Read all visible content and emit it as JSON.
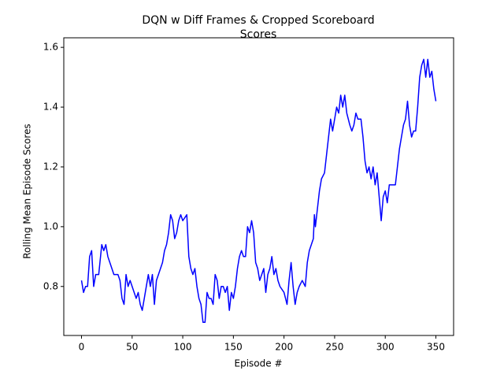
{
  "chart_data": {
    "type": "line",
    "title": [
      "DQN w Diff Frames & Cropped Scoreboard",
      "Scores"
    ],
    "x_label": "Episode #",
    "y_label": "Rolling Mean Episode Scores",
    "xlim": [
      -17.5,
      367.5
    ],
    "ylim": [
      0.636,
      1.632
    ],
    "xticks": [
      0,
      50,
      100,
      150,
      200,
      250,
      300,
      350
    ],
    "yticks": [
      0.8,
      {
        "value": 1,
        "label": "1.0"
      },
      1.2,
      1.4,
      1.6
    ],
    "series": [
      {
        "color": "#0000ff",
        "x": [
          0,
          2,
          4,
          6,
          8,
          10,
          12,
          14,
          17,
          20,
          22,
          24,
          26,
          28,
          30,
          32,
          36,
          38,
          40,
          42,
          44,
          46,
          48,
          50,
          52,
          54,
          56,
          58,
          60,
          62,
          64,
          66,
          68,
          70,
          72,
          74,
          76,
          78,
          80,
          82,
          84,
          86,
          88,
          90,
          92,
          94,
          96,
          98,
          100,
          104,
          106,
          108,
          110,
          112,
          114,
          116,
          118,
          120,
          122,
          124,
          126,
          128,
          130,
          132,
          134,
          136,
          138,
          140,
          142,
          144,
          146,
          148,
          150,
          152,
          154,
          156,
          158,
          160,
          162,
          164,
          166,
          168,
          170,
          172,
          174,
          176,
          178,
          180,
          182,
          184,
          186,
          188,
          190,
          192,
          194,
          196,
          200,
          203,
          205,
          207,
          209,
          211,
          213,
          215,
          218,
          221,
          223,
          225,
          227,
          229,
          230,
          231,
          233,
          235,
          237,
          240,
          242,
          244,
          246,
          248,
          250,
          252,
          254,
          256,
          258,
          260,
          262,
          265,
          267,
          269,
          271,
          273,
          276,
          278,
          280,
          282,
          284,
          286,
          288,
          290,
          292,
          294,
          296,
          298,
          300,
          302,
          304,
          307,
          310,
          312,
          314,
          316,
          318,
          320,
          322,
          324,
          326,
          328,
          330,
          332,
          334,
          336,
          338,
          340,
          342,
          344,
          346,
          348,
          350
        ],
        "values": [
          0.82,
          0.78,
          0.8,
          0.8,
          0.9,
          0.92,
          0.8,
          0.84,
          0.84,
          0.94,
          0.92,
          0.94,
          0.9,
          0.88,
          0.86,
          0.84,
          0.84,
          0.82,
          0.76,
          0.74,
          0.84,
          0.8,
          0.82,
          0.8,
          0.78,
          0.76,
          0.78,
          0.74,
          0.72,
          0.76,
          0.8,
          0.84,
          0.8,
          0.84,
          0.74,
          0.82,
          0.84,
          0.86,
          0.88,
          0.92,
          0.94,
          0.98,
          1.04,
          1.02,
          0.96,
          0.98,
          1.02,
          1.04,
          1.02,
          1.04,
          0.9,
          0.86,
          0.84,
          0.86,
          0.8,
          0.76,
          0.74,
          0.68,
          0.68,
          0.78,
          0.76,
          0.76,
          0.74,
          0.84,
          0.82,
          0.76,
          0.8,
          0.8,
          0.78,
          0.8,
          0.72,
          0.78,
          0.76,
          0.8,
          0.86,
          0.9,
          0.92,
          0.9,
          0.9,
          1.0,
          0.98,
          1.02,
          0.98,
          0.88,
          0.86,
          0.82,
          0.84,
          0.86,
          0.78,
          0.84,
          0.86,
          0.9,
          0.84,
          0.86,
          0.82,
          0.8,
          0.78,
          0.74,
          0.82,
          0.88,
          0.8,
          0.74,
          0.78,
          0.8,
          0.82,
          0.8,
          0.88,
          0.92,
          0.94,
          0.96,
          1.04,
          1.0,
          1.06,
          1.12,
          1.16,
          1.18,
          1.24,
          1.3,
          1.36,
          1.32,
          1.36,
          1.4,
          1.38,
          1.44,
          1.4,
          1.44,
          1.38,
          1.34,
          1.32,
          1.34,
          1.38,
          1.36,
          1.36,
          1.3,
          1.22,
          1.18,
          1.2,
          1.16,
          1.2,
          1.14,
          1.18,
          1.1,
          1.02,
          1.1,
          1.12,
          1.08,
          1.14,
          1.14,
          1.14,
          1.2,
          1.26,
          1.3,
          1.34,
          1.36,
          1.42,
          1.34,
          1.3,
          1.32,
          1.32,
          1.4,
          1.5,
          1.54,
          1.56,
          1.5,
          1.56,
          1.5,
          1.52,
          1.46,
          1.42
        ]
      }
    ]
  }
}
